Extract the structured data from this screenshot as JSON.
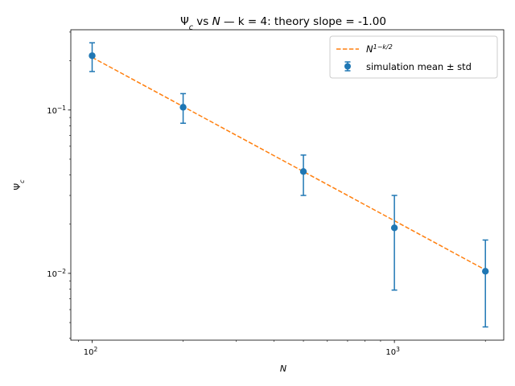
{
  "chart_data": {
    "type": "scatter",
    "title_parts": {
      "psi": "Ψ",
      "psi_sub": "c",
      "vs": " vs ",
      "n": "N",
      "dash_k": " — k",
      "eq_k": " = 4: theory slope = -1.00"
    },
    "xlabel": "N",
    "ylabel": "Ψ",
    "ylabel_sub": "c",
    "xscale": "log",
    "yscale": "log",
    "xlim": [
      85,
      2300
    ],
    "ylim": [
      0.0039,
      0.31
    ],
    "x_major_ticks": [
      {
        "value": 100,
        "base": "10",
        "exp": "2"
      },
      {
        "value": 1000,
        "base": "10",
        "exp": "3"
      }
    ],
    "y_major_ticks": [
      {
        "value": 0.01,
        "base": "10",
        "exp": "−2"
      },
      {
        "value": 0.1,
        "base": "10",
        "exp": "−1"
      }
    ],
    "series": [
      {
        "name": "simulation mean ± std",
        "kind": "errorbar",
        "color": "#1f77b4",
        "points": [
          {
            "x": 100,
            "y": 0.215,
            "lo": 0.172,
            "hi": 0.258
          },
          {
            "x": 200,
            "y": 0.104,
            "lo": 0.083,
            "hi": 0.126
          },
          {
            "x": 500,
            "y": 0.042,
            "lo": 0.03,
            "hi": 0.053
          },
          {
            "x": 1000,
            "y": 0.019,
            "lo": 0.0079,
            "hi": 0.03
          },
          {
            "x": 2000,
            "y": 0.0103,
            "lo": 0.0047,
            "hi": 0.016
          }
        ]
      },
      {
        "name_base": "N",
        "name_sup": "1−k/2",
        "kind": "line",
        "style": "dashed",
        "color": "#ff7f0e",
        "points": [
          {
            "x": 100,
            "y": 0.21
          },
          {
            "x": 2000,
            "y": 0.0105
          }
        ]
      }
    ],
    "legend_position": "upper right",
    "grid": false
  }
}
